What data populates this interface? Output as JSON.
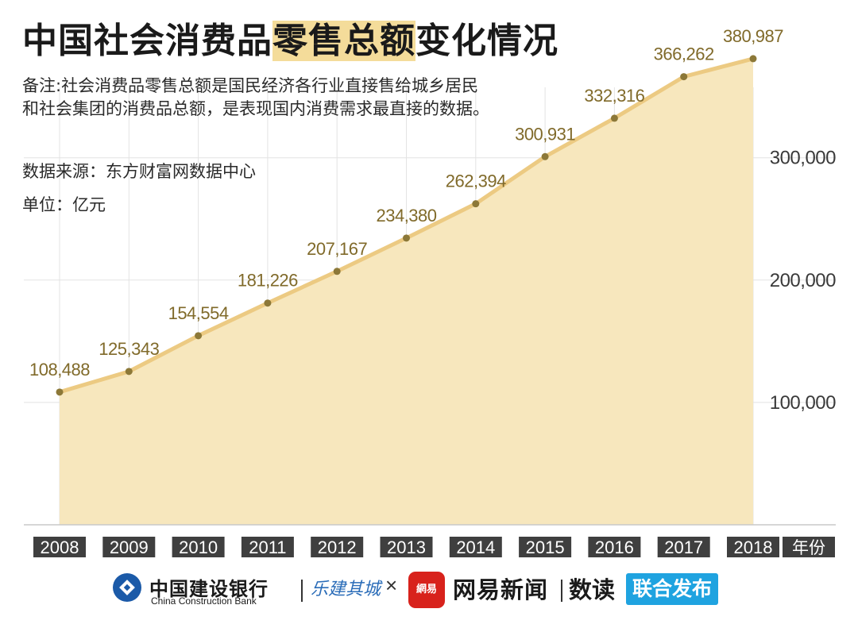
{
  "title": {
    "pre": "中国社会消费品",
    "highlight": "零售总额",
    "post": "变化情况"
  },
  "note": "备注:社会消费品零售总额是国民经济各行业直接售给城乡居民和社会集团的消费品总额，是表现国内消费需求最直接的数据。",
  "source": "数据来源：东方财富网数据中心",
  "unit": "单位：亿元",
  "colors": {
    "area_fill": "#f7e7bd",
    "line": "#ecca82",
    "point": "#8c7838",
    "value_label": "#806a2a",
    "tick_bg": "#3f3f3f",
    "grid": "#e3e3e3",
    "highlight": "#f4dc9a",
    "netease_red": "#d8221c",
    "joint_blue": "#1fa3e0",
    "ccb_blue": "#1b5aa8"
  },
  "chart_data": {
    "type": "area",
    "title": "中国社会消费品零售总额变化情况",
    "x": [
      "2008",
      "2009",
      "2010",
      "2011",
      "2012",
      "2013",
      "2014",
      "2015",
      "2016",
      "2017",
      "2018"
    ],
    "values": [
      108488,
      125343,
      154554,
      181226,
      207167,
      234380,
      262394,
      300931,
      332316,
      366262,
      380987
    ],
    "value_labels": [
      "108,488",
      "125,343",
      "154,554",
      "181,226",
      "207,167",
      "234,380",
      "262,394",
      "300,931",
      "332,316",
      "366,262",
      "380,987"
    ],
    "xlabel": "年份",
    "ylabel": "",
    "yticks": [
      100000,
      200000,
      300000
    ],
    "ytick_labels": [
      "100,000",
      "200,000",
      "300,000"
    ],
    "ylim": [
      0,
      420000
    ],
    "grid": true,
    "axis_position": "right"
  },
  "footer": {
    "ccb_name": "中国建设银行",
    "ccb_name_en": "China Construction Bank",
    "ccb_icon": "ccb-logo-icon",
    "lejian": "乐建其城",
    "times": "×",
    "netease_logo_text": "網易",
    "netease_news": "网易新闻",
    "shudu": "数读",
    "joint": "联合发布"
  }
}
